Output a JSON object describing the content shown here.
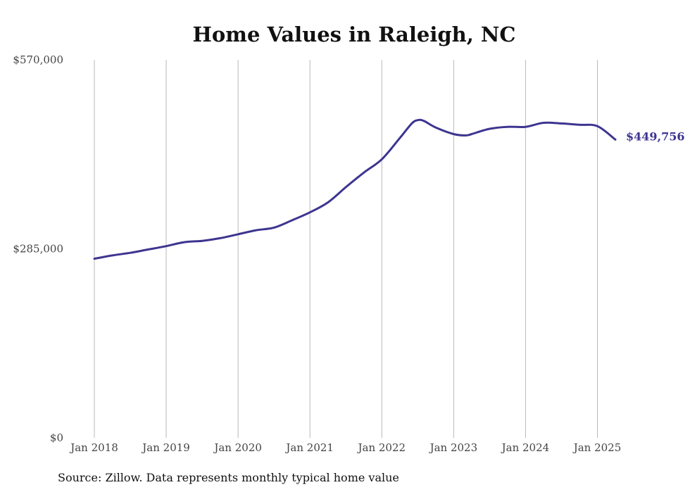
{
  "chart_data": {
    "type": "line",
    "title": "Home Values in Raleigh, NC",
    "xlabel": "",
    "ylabel": "",
    "ylim": [
      0,
      570000
    ],
    "xlim": [
      "2018-01",
      "2025-04"
    ],
    "y_ticks": [
      {
        "value": 0,
        "label": "$0"
      },
      {
        "value": 285000,
        "label": "$285,000"
      },
      {
        "value": 570000,
        "label": "$570,000"
      }
    ],
    "x_ticks": [
      {
        "value": "2018-01",
        "label": "Jan 2018"
      },
      {
        "value": "2019-01",
        "label": "Jan 2019"
      },
      {
        "value": "2020-01",
        "label": "Jan 2020"
      },
      {
        "value": "2021-01",
        "label": "Jan 2021"
      },
      {
        "value": "2022-01",
        "label": "Jan 2022"
      },
      {
        "value": "2023-01",
        "label": "Jan 2023"
      },
      {
        "value": "2024-01",
        "label": "Jan 2024"
      },
      {
        "value": "2025-01",
        "label": "Jan 2025"
      }
    ],
    "grid": {
      "x": true,
      "y": false
    },
    "line_color": "#3d3590",
    "series": [
      {
        "x": [
          "2018-01",
          "2018-04",
          "2018-07",
          "2018-10",
          "2019-01",
          "2019-04",
          "2019-07",
          "2019-10",
          "2020-01",
          "2020-04",
          "2020-07",
          "2020-10",
          "2021-01",
          "2021-04",
          "2021-07",
          "2021-10",
          "2022-01",
          "2022-04",
          "2022-06",
          "2022-07",
          "2022-08",
          "2022-10",
          "2023-01",
          "2023-03",
          "2023-04",
          "2023-07",
          "2023-10",
          "2024-01",
          "2024-04",
          "2024-07",
          "2024-10",
          "2025-01",
          "2025-04"
        ],
        "values": [
          270000,
          275000,
          279000,
          284000,
          289000,
          295000,
          297000,
          301000,
          307000,
          313000,
          317000,
          328000,
          340000,
          355000,
          378000,
          400000,
          420000,
          452000,
          474000,
          479000,
          478000,
          468000,
          458000,
          456000,
          458000,
          466000,
          469000,
          469000,
          475000,
          474000,
          472000,
          470000,
          449756
        ]
      }
    ],
    "end_label": "$449,756",
    "source": "Source: Zillow. Data represents monthly typical home value"
  }
}
